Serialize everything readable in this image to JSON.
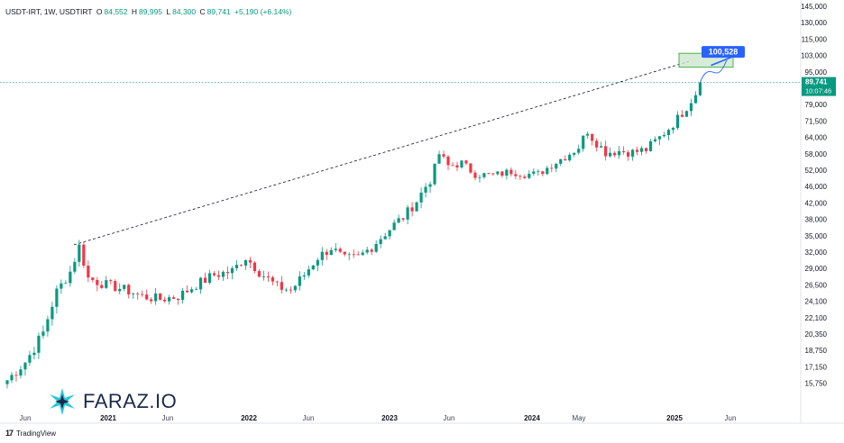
{
  "header": {
    "symbol": "USDT-IRT, 1W, USDTIRT",
    "open_label": "O",
    "open": "84,552",
    "high_label": "H",
    "high": "89,995",
    "low_label": "L",
    "low": "84,300",
    "close_label": "C",
    "close": "89,741",
    "change": "+5,190 (+6.14%)"
  },
  "watermark": {
    "text": "FARAZ.IO",
    "icon": "faraz-star-logo"
  },
  "footer": {
    "logo": "17",
    "brand": "TradingView"
  },
  "price_badge": {
    "price": "89,741",
    "countdown": "10:07:46",
    "color": "#089981"
  },
  "target_label": {
    "value": "100,528",
    "color": "#2962ff"
  },
  "colors": {
    "up": "#089981",
    "down": "#f23645",
    "target_box": "#c8e6c9",
    "target_border": "#4caf50"
  },
  "chart_data": {
    "type": "candlestick",
    "x_tick_labels": [
      "Jun",
      "2021",
      "Jun",
      "2022",
      "Jun",
      "2023",
      "Jun",
      "2024",
      "May",
      "2025",
      "Jun"
    ],
    "y_tick_labels": [
      "145,000",
      "130,000",
      "115,000",
      "103,000",
      "95,000",
      "87,000",
      "79,000",
      "71,500",
      "64,000",
      "58,000",
      "52,000",
      "46,000",
      "42,000",
      "38,000",
      "35,000",
      "32,000",
      "29,000",
      "26,500",
      "24,100",
      "22,100",
      "20,350",
      "18,750",
      "17,150",
      "15,750"
    ],
    "y_scale": "log",
    "last_price": 89741,
    "target_price": 100528,
    "trendline": {
      "from_price": 33300,
      "to_price": 100000,
      "style": "dashed"
    },
    "anchors": [
      [
        0,
        16000
      ],
      [
        4,
        17600
      ],
      [
        8,
        20500
      ],
      [
        11,
        25500
      ],
      [
        14,
        28500
      ],
      [
        16,
        33000
      ],
      [
        18,
        27500
      ],
      [
        22,
        26500
      ],
      [
        26,
        25800
      ],
      [
        30,
        24800
      ],
      [
        34,
        24400
      ],
      [
        38,
        24800
      ],
      [
        42,
        26500
      ],
      [
        46,
        28000
      ],
      [
        50,
        28600
      ],
      [
        53,
        31000
      ],
      [
        56,
        28500
      ],
      [
        60,
        26200
      ],
      [
        63,
        25700
      ],
      [
        66,
        28000
      ],
      [
        69,
        31000
      ],
      [
        72,
        32800
      ],
      [
        75,
        30700
      ],
      [
        78,
        31000
      ],
      [
        81,
        33000
      ],
      [
        84,
        35500
      ],
      [
        88,
        38500
      ],
      [
        91,
        42500
      ],
      [
        94,
        48000
      ],
      [
        96,
        58000
      ],
      [
        98,
        53500
      ],
      [
        101,
        54500
      ],
      [
        104,
        50500
      ],
      [
        108,
        50000
      ],
      [
        112,
        51500
      ],
      [
        115,
        50500
      ],
      [
        118,
        50500
      ],
      [
        121,
        54000
      ],
      [
        124,
        57000
      ],
      [
        127,
        60500
      ],
      [
        129,
        67000
      ],
      [
        130,
        64000
      ],
      [
        133,
        58500
      ],
      [
        136,
        59000
      ],
      [
        139,
        58500
      ],
      [
        142,
        59500
      ],
      [
        145,
        64000
      ],
      [
        148,
        70000
      ],
      [
        151,
        78000
      ],
      [
        153,
        84500
      ],
      [
        154,
        89741
      ]
    ],
    "grid": false,
    "legend": "none"
  }
}
